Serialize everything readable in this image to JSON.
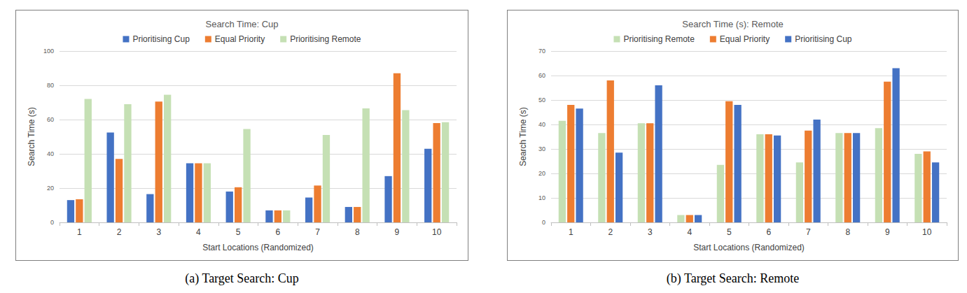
{
  "chart_data": [
    {
      "type": "bar",
      "title": "Search Time: Cup",
      "caption": "(a) Target Search: Cup",
      "x_label": "Start Locations (Randomized)",
      "y_label": "Search Time (s)",
      "categories": [
        "1",
        "2",
        "3",
        "4",
        "5",
        "6",
        "7",
        "8",
        "9",
        "10"
      ],
      "series": [
        {
          "name": "Prioritising Cup",
          "color": "#4472c4",
          "values": [
            13,
            52.5,
            16.5,
            34.5,
            18,
            7,
            14.5,
            9,
            27,
            43
          ]
        },
        {
          "name": "Equal Priority",
          "color": "#ed7d31",
          "values": [
            13.5,
            37,
            70.5,
            34.5,
            20.5,
            7,
            21.5,
            9,
            87,
            58
          ]
        },
        {
          "name": "Prioritising Remote",
          "color": "#c5e0b4",
          "values": [
            72,
            69,
            74.5,
            34.5,
            54.5,
            7,
            51,
            66.5,
            65.5,
            58.5
          ]
        }
      ],
      "ylim": [
        0,
        100
      ],
      "yticks": [
        0,
        20,
        40,
        60,
        80,
        100
      ],
      "grid": true,
      "legend": "top"
    },
    {
      "type": "bar",
      "title": "Search Time (s): Remote",
      "caption": "(b) Target Search: Remote",
      "x_label": "Start Locations (Randomized)",
      "y_label": "Search Time (s)",
      "categories": [
        "1",
        "2",
        "3",
        "4",
        "5",
        "6",
        "7",
        "8",
        "9",
        "10"
      ],
      "series": [
        {
          "name": "Prioritising Remote",
          "color": "#c5e0b4",
          "values": [
            41.5,
            36.5,
            40.5,
            3,
            23.5,
            36,
            24.5,
            36.5,
            38.5,
            28
          ]
        },
        {
          "name": "Equal Priority",
          "color": "#ed7d31",
          "values": [
            48,
            58,
            40.5,
            3,
            49.5,
            36,
            37.5,
            36.5,
            57.5,
            29
          ]
        },
        {
          "name": "Prioritising Cup",
          "color": "#4472c4",
          "values": [
            46.5,
            28.5,
            56,
            3,
            48,
            35.5,
            42,
            36.5,
            63,
            24.5
          ]
        }
      ],
      "ylim": [
        0,
        70
      ],
      "yticks": [
        0,
        10,
        20,
        30,
        40,
        50,
        60,
        70
      ],
      "grid": true,
      "legend": "top"
    }
  ]
}
